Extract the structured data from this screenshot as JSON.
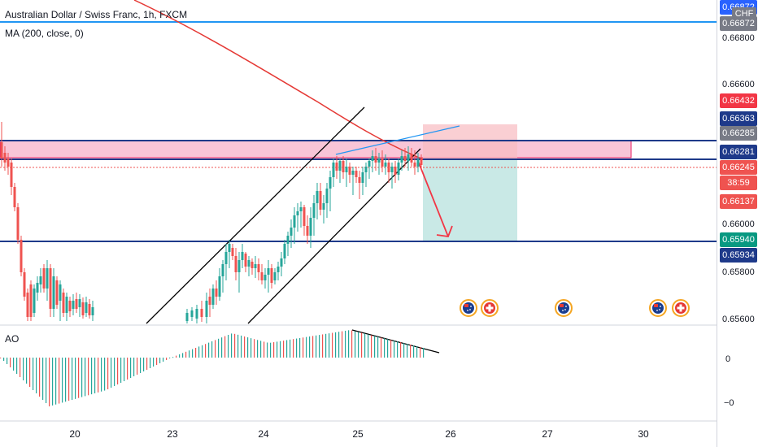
{
  "chart": {
    "symbol_title": "Australian Dollar / Swiss Franc, 1h, FXCM",
    "ma_label": "MA (200, close, 0)",
    "ao_label": "AO",
    "currency": "CHF"
  },
  "price_axis": {
    "plain_labels": [
      "0.66800",
      "0.66600",
      "0.66000",
      "0.65800",
      "0.65600"
    ],
    "ao_labels": [
      "0",
      "−0"
    ],
    "tags": [
      {
        "text": "0.66872",
        "color": "#2962ff"
      },
      {
        "text": "0.66432",
        "color": "#f23645"
      },
      {
        "text": "0.66363",
        "color": "#1e3a8a"
      },
      {
        "text": "0.66285",
        "color": "#787b86"
      },
      {
        "text": "0.66281",
        "color": "#1e3a8a"
      },
      {
        "text": "0.66245",
        "color": "#ef5350"
      },
      {
        "text": "38:59",
        "color": "#ef5350"
      },
      {
        "text": "0.66137",
        "color": "#ef5350"
      },
      {
        "text": "0.65940",
        "color": "#089981"
      },
      {
        "text": "0.65934",
        "color": "#1e3a8a"
      }
    ]
  },
  "time_axis": [
    "20",
    "23",
    "24",
    "25",
    "26",
    "27",
    "30"
  ],
  "events": [
    "australia-flag",
    "switzerland-flag",
    "australia-flag",
    "australia-flag",
    "switzerland-flag"
  ],
  "colors": {
    "up": "#26a69a",
    "down": "#ef5350",
    "ma": "#e53935",
    "level": "#1e3a8a",
    "top_line": "#2196f3",
    "zone": "#f8bbd0"
  }
}
